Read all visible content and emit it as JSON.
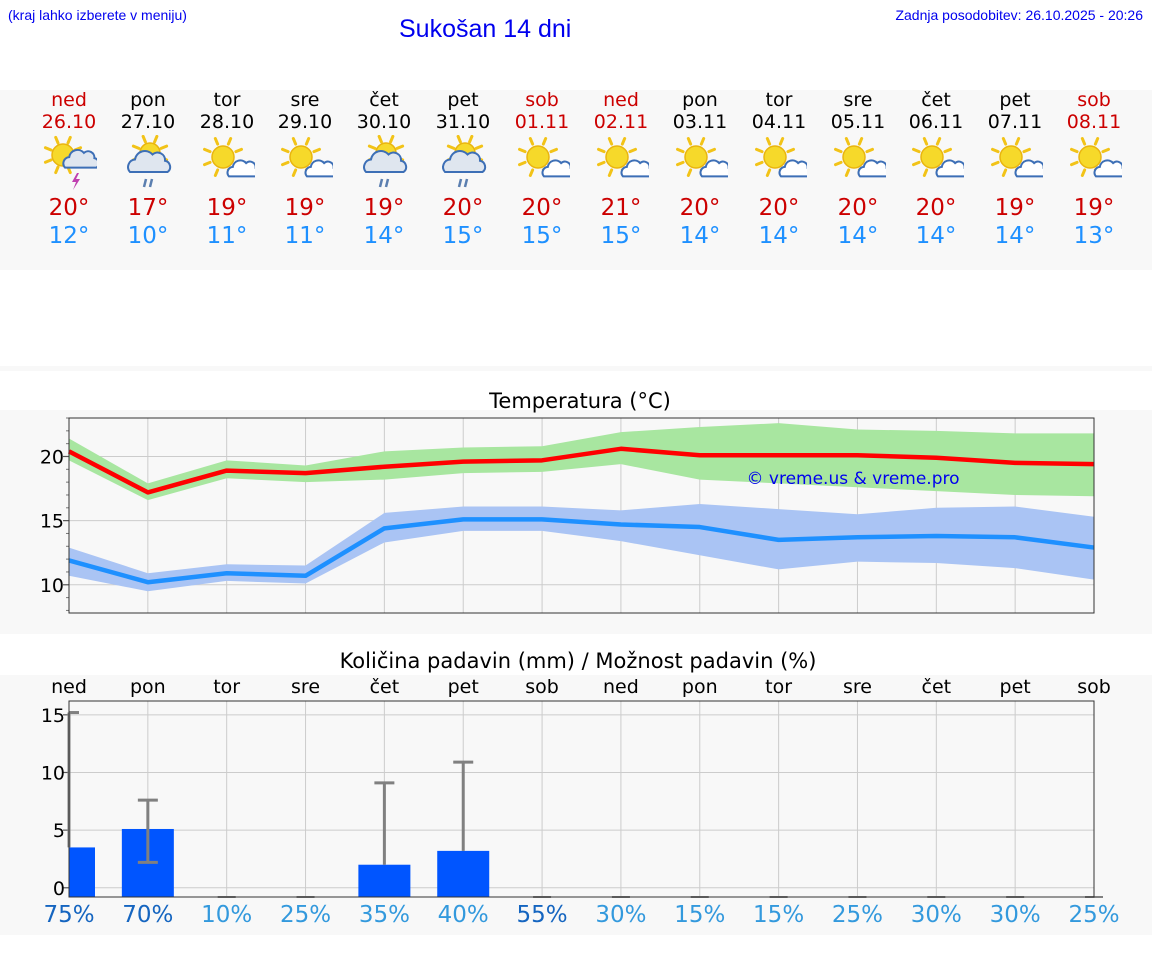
{
  "header": {
    "location_hint": "(kraj lahko izberete v meniju)",
    "title": "Sukošan 14 dni",
    "last_update": "Zadnja posodobitev: 26.10.2025 - 20:26"
  },
  "days": [
    {
      "name": "ned",
      "date": "26.10",
      "weekend": true,
      "icon": "sun-cloud-thunder-icon",
      "tmax": "20°",
      "tmin": "12°"
    },
    {
      "name": "pon",
      "date": "27.10",
      "weekend": false,
      "icon": "sun-cloud-rain-icon",
      "tmax": "17°",
      "tmin": "10°"
    },
    {
      "name": "tor",
      "date": "28.10",
      "weekend": false,
      "icon": "sun-small-cloud-icon",
      "tmax": "19°",
      "tmin": "11°"
    },
    {
      "name": "sre",
      "date": "29.10",
      "weekend": false,
      "icon": "sun-small-cloud-icon",
      "tmax": "19°",
      "tmin": "11°"
    },
    {
      "name": "čet",
      "date": "30.10",
      "weekend": false,
      "icon": "sun-cloud-rain-icon",
      "tmax": "19°",
      "tmin": "14°"
    },
    {
      "name": "pet",
      "date": "31.10",
      "weekend": false,
      "icon": "sun-cloud-rain-icon",
      "tmax": "20°",
      "tmin": "15°"
    },
    {
      "name": "sob",
      "date": "01.11",
      "weekend": true,
      "icon": "sun-small-cloud-icon",
      "tmax": "20°",
      "tmin": "15°"
    },
    {
      "name": "ned",
      "date": "02.11",
      "weekend": true,
      "icon": "sun-small-cloud-icon",
      "tmax": "21°",
      "tmin": "15°"
    },
    {
      "name": "pon",
      "date": "03.11",
      "weekend": false,
      "icon": "sun-small-cloud-icon",
      "tmax": "20°",
      "tmin": "14°"
    },
    {
      "name": "tor",
      "date": "04.11",
      "weekend": false,
      "icon": "sun-small-cloud-icon",
      "tmax": "20°",
      "tmin": "14°"
    },
    {
      "name": "sre",
      "date": "05.11",
      "weekend": false,
      "icon": "sun-small-cloud-icon",
      "tmax": "20°",
      "tmin": "14°"
    },
    {
      "name": "čet",
      "date": "06.11",
      "weekend": false,
      "icon": "sun-small-cloud-icon",
      "tmax": "20°",
      "tmin": "14°"
    },
    {
      "name": "pet",
      "date": "07.11",
      "weekend": false,
      "icon": "sun-small-cloud-icon",
      "tmax": "19°",
      "tmin": "14°"
    },
    {
      "name": "sob",
      "date": "08.11",
      "weekend": true,
      "icon": "sun-small-cloud-icon",
      "tmax": "19°",
      "tmin": "13°"
    }
  ],
  "colors": {
    "accent_blue": "#0000ee",
    "weekend_red": "#cc0000",
    "min_temp_blue": "#1e90ff",
    "max_line": "#ff0000",
    "max_band": "#a8e6a0",
    "min_line": "#1e90ff",
    "min_band": "#aac4f4",
    "precip_bar": "#0055ff",
    "errorbar": "#808080",
    "pct_dark": "#1565c0",
    "pct_light": "#3399dd"
  },
  "chart_data": [
    {
      "type": "line",
      "title": "Temperatura (°C)",
      "watermark": "© vreme.us & vreme.pro",
      "x": [
        0,
        1,
        2,
        3,
        4,
        5,
        6,
        7,
        8,
        9,
        10,
        11,
        12,
        13
      ],
      "ylim": [
        7.8,
        23
      ],
      "yticks": [
        10,
        15,
        20
      ],
      "series": [
        {
          "name": "max",
          "values": [
            20.4,
            17.2,
            18.9,
            18.7,
            19.2,
            19.6,
            19.7,
            20.6,
            20.1,
            20.1,
            20.1,
            19.9,
            19.5,
            19.4
          ],
          "band_low": [
            19.7,
            16.6,
            18.3,
            18.0,
            18.2,
            18.7,
            18.8,
            19.4,
            18.2,
            17.9,
            17.6,
            17.3,
            17.0,
            16.9
          ],
          "band_high": [
            21.4,
            17.9,
            19.7,
            19.3,
            20.4,
            20.7,
            20.8,
            21.9,
            22.3,
            22.6,
            22.1,
            22.0,
            21.8,
            21.8
          ]
        },
        {
          "name": "min",
          "values": [
            11.9,
            10.2,
            10.9,
            10.7,
            14.4,
            15.1,
            15.1,
            14.7,
            14.5,
            13.5,
            13.7,
            13.8,
            13.7,
            12.9
          ],
          "band_low": [
            10.7,
            9.5,
            10.3,
            10.1,
            13.3,
            14.2,
            14.2,
            13.4,
            12.3,
            11.2,
            11.8,
            11.7,
            11.3,
            10.4
          ],
          "band_high": [
            12.9,
            10.9,
            11.6,
            11.5,
            15.6,
            16.1,
            16.1,
            15.8,
            16.3,
            15.9,
            15.5,
            16.0,
            16.1,
            15.3
          ]
        }
      ]
    },
    {
      "type": "bar",
      "title": "Količina padavin (mm) / Možnost padavin (%)",
      "categories": [
        "ned",
        "pon",
        "tor",
        "sre",
        "čet",
        "pet",
        "sob",
        "ned",
        "pon",
        "tor",
        "sre",
        "čet",
        "pet",
        "sob"
      ],
      "values": [
        3.5,
        5.1,
        0,
        0,
        2.0,
        3.2,
        0,
        0,
        0,
        0,
        0,
        0,
        0,
        0
      ],
      "error_low": [
        null,
        2.2,
        null,
        null,
        null,
        null,
        null,
        null,
        null,
        null,
        null,
        null,
        null,
        null
      ],
      "error_high": [
        15.2,
        7.6,
        null,
        null,
        9.1,
        10.9,
        null,
        null,
        null,
        null,
        null,
        null,
        null,
        null
      ],
      "ylim": [
        -0.8,
        16.2
      ],
      "yticks": [
        0,
        5,
        10,
        15
      ],
      "probability_pct": [
        "75%",
        "70%",
        "10%",
        "25%",
        "35%",
        "40%",
        "55%",
        "30%",
        "15%",
        "15%",
        "25%",
        "30%",
        "30%",
        "25%"
      ],
      "probability_dark": [
        true,
        true,
        false,
        false,
        false,
        false,
        true,
        false,
        false,
        false,
        false,
        false,
        false,
        false
      ]
    }
  ]
}
